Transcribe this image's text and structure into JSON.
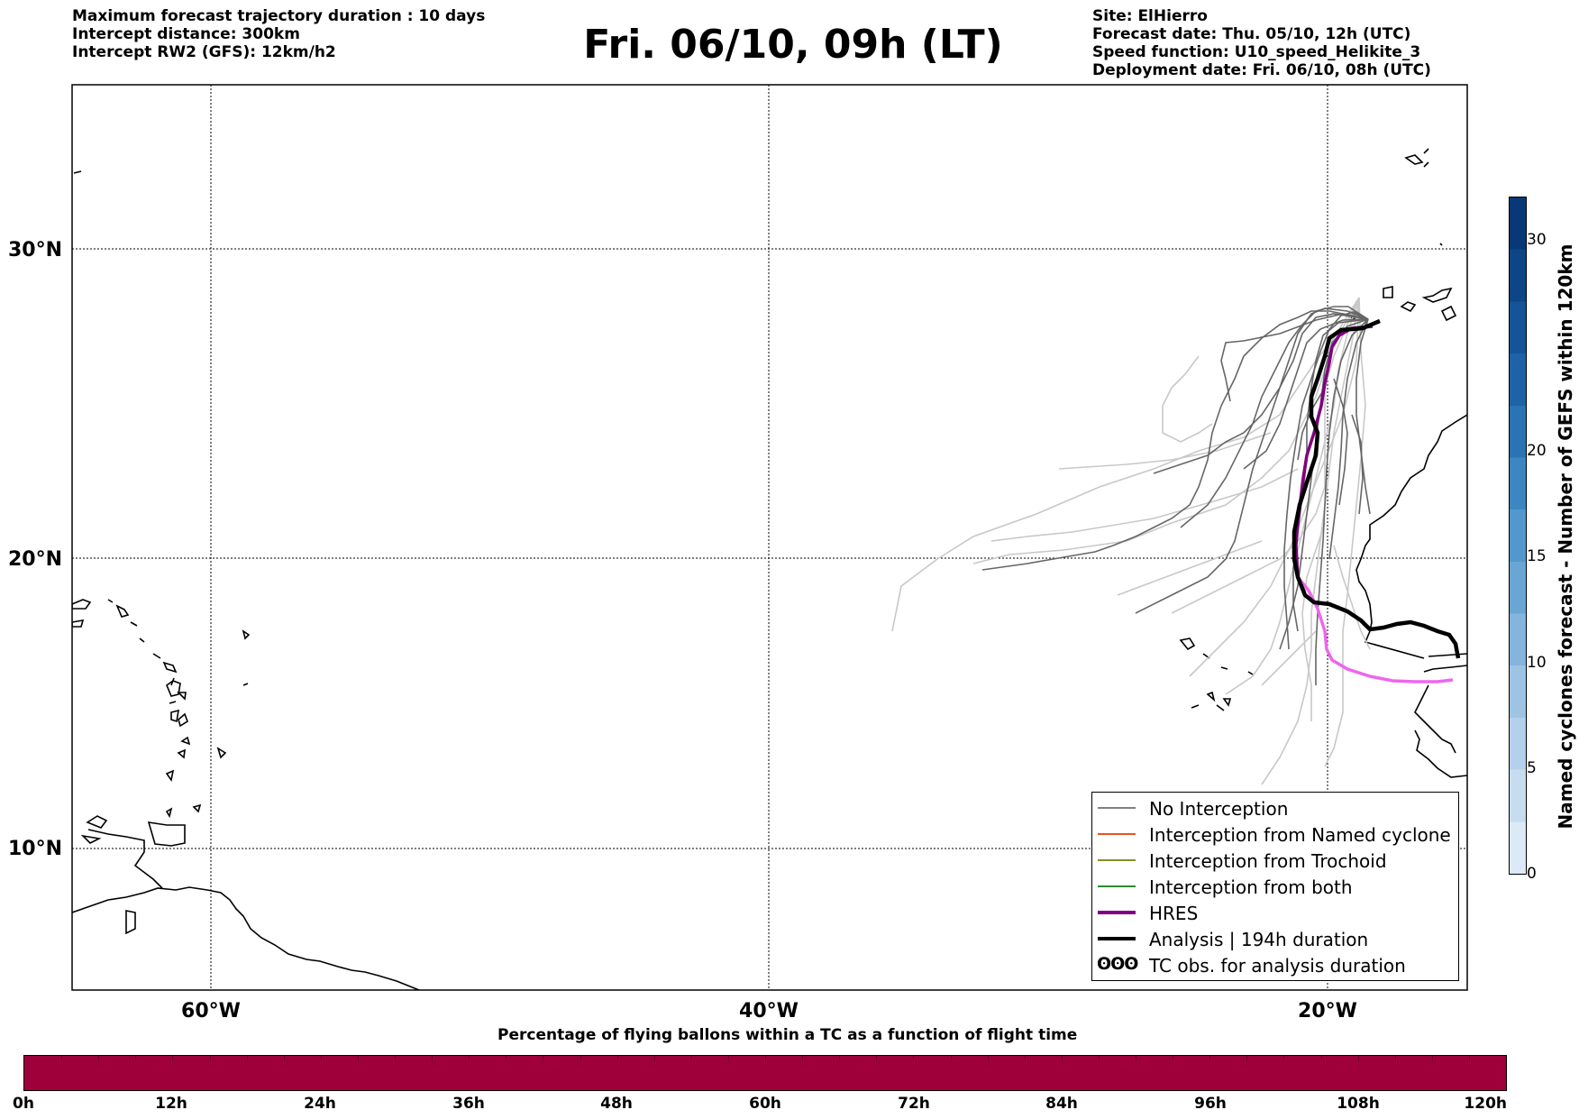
{
  "header": {
    "left_lines": [
      "Maximum forecast trajectory duration : 10 days",
      "Intercept distance: 300km",
      "Intercept RW2 (GFS):  12km/h2"
    ],
    "title": "Fri. 06/10, 09h (LT)",
    "right_lines": [
      "Site: ElHierro",
      "Forecast date: Thu. 05/10, 12h (UTC)",
      "Speed function: U10_speed_Helikite_3",
      "Deployment date: Fri. 06/10, 08h (UTC)"
    ]
  },
  "map": {
    "lat_labels": [
      "30°N",
      "20°N",
      "10°N"
    ],
    "lon_labels": [
      "60°W",
      "40°W",
      "20°W"
    ],
    "extent": {
      "lon": [
        -65,
        -15
      ],
      "lat": [
        5,
        34.3
      ]
    },
    "colors": {
      "ensemble_dark": "#666666",
      "ensemble_light": "#c8c8c8",
      "hres": "#800080",
      "hres_extension": "#ee66ee",
      "analysis": "#000000"
    }
  },
  "legend": {
    "items": [
      {
        "label": "No Interception",
        "color": "#808080",
        "style": "thin"
      },
      {
        "label": "Interception from Named cyclone",
        "color": "#e8541f",
        "style": "thin"
      },
      {
        "label": "Interception from Trochoid",
        "color": "#8b8b2a",
        "style": "thin"
      },
      {
        "label": "Interception from both",
        "color": "#2e8b2e",
        "style": "thin"
      },
      {
        "label": "HRES",
        "color": "#800080",
        "style": "thick"
      },
      {
        "label": "Analysis | 194h duration",
        "color": "#000000",
        "style": "thick"
      },
      {
        "label": "TC obs. for analysis duration",
        "symbol": "ʘʘʘ",
        "style": "symbol"
      }
    ]
  },
  "colorbar_vertical": {
    "label": "Named cyclones forecast - Number of GEFS within 120km",
    "ticks": [
      "0",
      "5",
      "10",
      "15",
      "20",
      "30"
    ],
    "range": [
      0,
      32
    ]
  },
  "colorbar_horizontal": {
    "title": "Percentage of flying ballons within a TC as a function of flight time",
    "ticks": [
      "0h",
      "12h",
      "24h",
      "36h",
      "48h",
      "60h",
      "72h",
      "84h",
      "96h",
      "108h",
      "120h"
    ],
    "fill_color": "#a0003a"
  }
}
